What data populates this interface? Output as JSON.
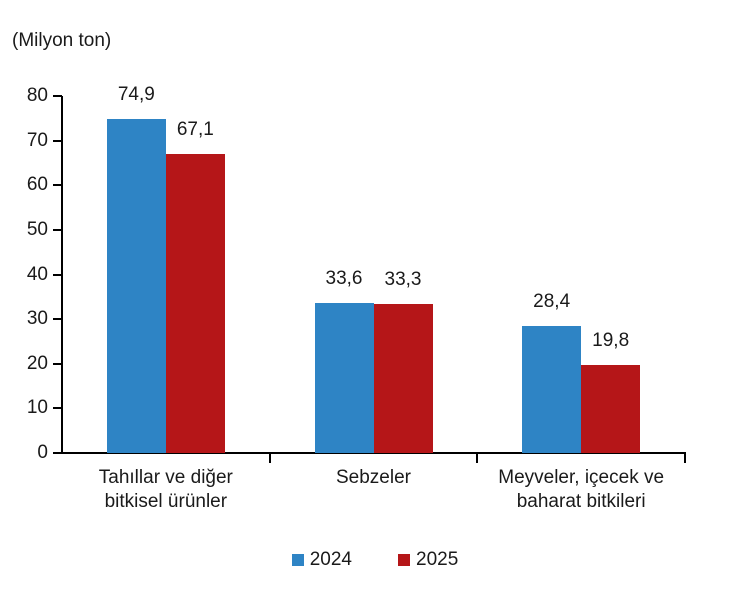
{
  "page": {
    "background": "#ffffff",
    "text_color": "#1a1a1a",
    "axis_color": "#000000"
  },
  "chart_data": {
    "type": "bar",
    "title": "(Milyon ton)",
    "categories": [
      "Tahıllar ve diğer\nbitkisel ürünler",
      "Sebzeler",
      "Meyveler, içecek ve\nbaharat bitkileri"
    ],
    "series": [
      {
        "name": "2024",
        "color": "#2E84C5",
        "values": [
          74.9,
          33.6,
          28.4
        ],
        "value_labels": [
          "74,9",
          "33,6",
          "28,4"
        ]
      },
      {
        "name": "2025",
        "color": "#B51618",
        "values": [
          67.1,
          33.3,
          19.8
        ],
        "value_labels": [
          "67,1",
          "33,3",
          "19,8"
        ]
      }
    ],
    "ylim": [
      0,
      80
    ],
    "yticks": [
      "0",
      "10",
      "20",
      "30",
      "40",
      "50",
      "60",
      "70",
      "80"
    ],
    "xlabel": "",
    "ylabel": "",
    "grid": false,
    "legend_position": "bottom"
  }
}
